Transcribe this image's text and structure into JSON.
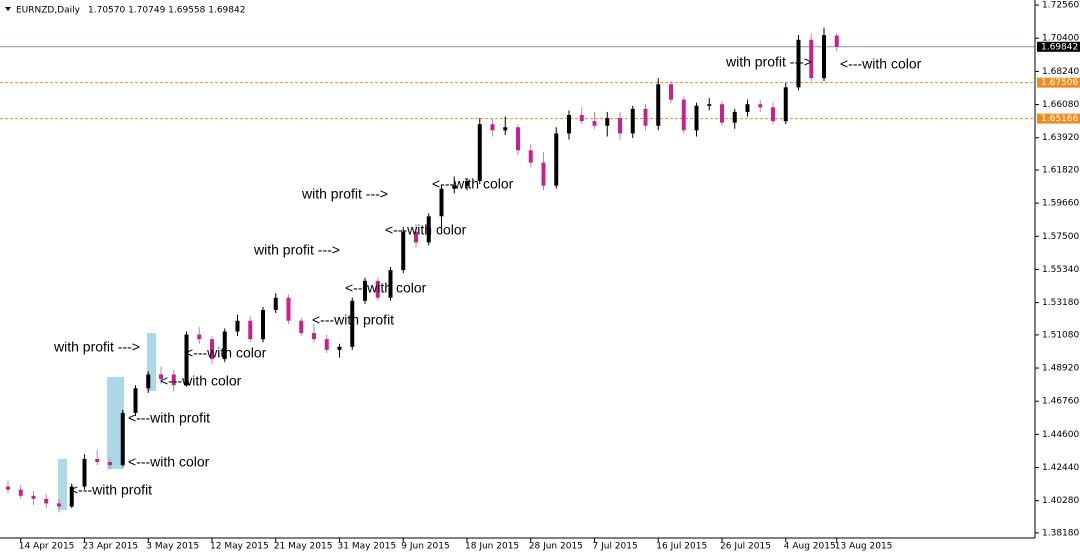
{
  "chart_data": {
    "type": "candlestick",
    "title": "EURNZD,Daily",
    "info": "1.70570 1.70749 1.69558 1.69842",
    "bull_color": "#000000",
    "bear_color": "#cc1f8f",
    "categories": [
      null,
      "14 Apr 2015",
      null,
      null,
      null,
      null,
      "23 Apr 2015",
      null,
      null,
      null,
      null,
      "3 May 2015",
      null,
      null,
      null,
      null,
      "12 May 2015",
      null,
      null,
      null,
      null,
      "21 May 2015",
      null,
      null,
      null,
      null,
      "31 May 2015",
      null,
      null,
      null,
      null,
      "9 Jun 2015",
      null,
      null,
      null,
      null,
      "18 Jun 2015",
      null,
      null,
      null,
      null,
      "28 Jun 2015",
      null,
      null,
      null,
      null,
      "7 Jul 2015",
      null,
      null,
      null,
      null,
      "16 Jul 2015",
      null,
      null,
      null,
      null,
      "26 Jul 2015",
      null,
      null,
      null,
      null,
      "4 Aug 2015",
      null,
      null,
      null,
      "13 Aug 2015"
    ],
    "open": [
      1.412,
      1.41,
      1.406,
      1.404,
      1.401,
      1.399,
      1.412,
      1.43,
      1.428,
      1.426,
      1.46,
      1.476,
      1.485,
      1.485,
      1.478,
      1.511,
      1.508,
      1.495,
      1.513,
      1.52,
      1.508,
      1.527,
      1.535,
      1.52,
      1.512,
      1.508,
      1.501,
      1.503,
      1.533,
      1.546,
      1.535,
      1.553,
      1.578,
      1.571,
      1.588,
      1.606,
      1.608,
      1.611,
      1.648,
      1.644,
      1.646,
      1.631,
      1.623,
      1.608,
      1.642,
      1.654,
      1.65,
      1.647,
      1.652,
      1.642,
      1.658,
      1.647,
      1.674,
      1.664,
      1.644,
      1.66,
      1.661,
      1.649,
      1.656,
      1.661,
      1.659,
      1.65,
      1.672,
      1.703,
      1.678,
      1.7057
    ],
    "high": [
      1.416,
      1.413,
      1.409,
      1.407,
      1.404,
      1.414,
      1.433,
      1.436,
      1.431,
      1.462,
      1.478,
      1.487,
      1.49,
      1.488,
      1.513,
      1.516,
      1.51,
      1.515,
      1.524,
      1.523,
      1.529,
      1.538,
      1.537,
      1.522,
      1.518,
      1.511,
      1.505,
      1.535,
      1.548,
      1.548,
      1.555,
      1.581,
      1.583,
      1.59,
      1.608,
      1.614,
      1.613,
      1.652,
      1.652,
      1.653,
      1.648,
      1.635,
      1.63,
      1.646,
      1.657,
      1.659,
      1.656,
      1.656,
      1.656,
      1.66,
      1.661,
      1.678,
      1.676,
      1.666,
      1.662,
      1.665,
      1.663,
      1.658,
      1.664,
      1.664,
      1.662,
      1.675,
      1.706,
      1.707,
      1.711,
      1.7075
    ],
    "low": [
      1.408,
      1.404,
      1.4,
      1.398,
      1.395,
      1.398,
      1.41,
      1.426,
      1.423,
      1.425,
      1.458,
      1.473,
      1.479,
      1.474,
      1.477,
      1.505,
      1.492,
      1.493,
      1.51,
      1.506,
      1.506,
      1.525,
      1.518,
      1.51,
      1.506,
      1.499,
      1.496,
      1.501,
      1.531,
      1.533,
      1.533,
      1.551,
      1.568,
      1.569,
      1.577,
      1.603,
      1.605,
      1.609,
      1.64,
      1.641,
      1.628,
      1.62,
      1.605,
      1.606,
      1.638,
      1.648,
      1.645,
      1.64,
      1.638,
      1.639,
      1.644,
      1.644,
      1.662,
      1.642,
      1.64,
      1.657,
      1.647,
      1.645,
      1.653,
      1.656,
      1.648,
      1.648,
      1.67,
      1.676,
      1.676,
      1.6956
    ],
    "close": [
      1.41,
      1.406,
      1.404,
      1.401,
      1.399,
      1.412,
      1.43,
      1.428,
      1.426,
      1.46,
      1.476,
      1.485,
      1.482,
      1.478,
      1.511,
      1.508,
      1.495,
      1.513,
      1.52,
      1.508,
      1.527,
      1.535,
      1.52,
      1.512,
      1.508,
      1.501,
      1.503,
      1.533,
      1.546,
      1.535,
      1.553,
      1.578,
      1.571,
      1.588,
      1.606,
      1.608,
      1.611,
      1.648,
      1.644,
      1.646,
      1.631,
      1.623,
      1.608,
      1.642,
      1.654,
      1.65,
      1.647,
      1.652,
      1.642,
      1.658,
      1.647,
      1.674,
      1.664,
      1.644,
      1.66,
      1.661,
      1.649,
      1.656,
      1.661,
      1.659,
      1.65,
      1.672,
      1.703,
      1.678,
      1.706,
      1.6984
    ],
    "ylim": [
      1.3785,
      1.7289
    ],
    "yticks": [
      {
        "value": 1.7256,
        "label": "1.72560"
      },
      {
        "value": 1.704,
        "label": "1.70400"
      },
      {
        "value": 1.6824,
        "label": "1.68240"
      },
      {
        "value": 1.6608,
        "label": "1.66080"
      },
      {
        "value": 1.6392,
        "label": "1.63920"
      },
      {
        "value": 1.6182,
        "label": "1.61820"
      },
      {
        "value": 1.5966,
        "label": "1.59660"
      },
      {
        "value": 1.575,
        "label": "1.57500"
      },
      {
        "value": 1.5534,
        "label": "1.55340"
      },
      {
        "value": 1.5318,
        "label": "1.53180"
      },
      {
        "value": 1.5108,
        "label": "1.51080"
      },
      {
        "value": 1.4892,
        "label": "1.48920"
      },
      {
        "value": 1.4676,
        "label": "1.46760"
      },
      {
        "value": 1.446,
        "label": "1.44600"
      },
      {
        "value": 1.4244,
        "label": "1.42440"
      },
      {
        "value": 1.4028,
        "label": "1.40280"
      },
      {
        "value": 1.3818,
        "label": "1.38180"
      }
    ],
    "levels": [
      {
        "value": 1.69842,
        "label": "1.69842",
        "color": "#000000",
        "line_color": "#8a96a8",
        "dashed": false
      },
      {
        "value": 1.67506,
        "label": "1.67506",
        "color": "#f08c1e",
        "line_color": "#f08c1e",
        "dashed": true
      },
      {
        "value": 1.65166,
        "label": "1.65166",
        "color": "#f08c1e",
        "line_color": "#f08c1e",
        "dashed": true
      }
    ],
    "annotations": [
      "<---with profit",
      "<---with color",
      "<---with profit",
      "<---with color",
      "with profit --->",
      "<---with color",
      "<---with profit",
      "<---with color",
      "with profit --->",
      "<---with color",
      "with profit --->",
      "<---with color",
      "with profit --->",
      "<---with color"
    ]
  }
}
